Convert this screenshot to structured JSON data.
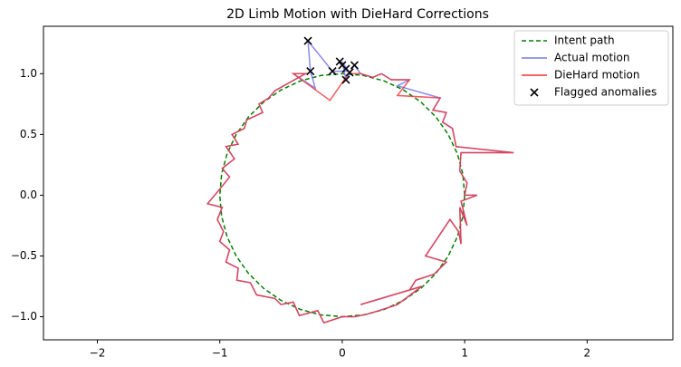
{
  "chart_data": {
    "type": "line",
    "title": "2D Limb Motion with DieHard Corrections",
    "xlim": [
      -2.44,
      2.7
    ],
    "ylim": [
      -1.19,
      1.39
    ],
    "xticks": [
      {
        "value": -2,
        "label": "−2"
      },
      {
        "value": -1,
        "label": "−1"
      },
      0,
      1,
      2
    ],
    "yticks": [
      {
        "value": -1,
        "label": "−1.0"
      },
      {
        "value": -0.5,
        "label": "−0.5"
      },
      {
        "value": 0,
        "label": "0.0"
      },
      {
        "value": 0.5,
        "label": "0.5"
      },
      {
        "value": 1,
        "label": "1.0"
      }
    ],
    "grid": false,
    "legend": "upper right",
    "series": [
      {
        "name": "Intent path",
        "color": "#008000",
        "style": "dashed",
        "x": [
          1,
          0.985,
          0.94,
          0.866,
          0.766,
          0.643,
          0.5,
          0.342,
          0.174,
          0,
          -0.174,
          -0.342,
          -0.5,
          -0.643,
          -0.766,
          -0.866,
          -0.94,
          -0.985,
          -1,
          -0.985,
          -0.94,
          -0.866,
          -0.766,
          -0.643,
          -0.5,
          -0.342,
          -0.174,
          0,
          0.174,
          0.342,
          0.5,
          0.643,
          0.766,
          0.866,
          0.94,
          0.985,
          1
        ],
        "y": [
          0,
          0.174,
          0.342,
          0.5,
          0.643,
          0.766,
          0.866,
          0.94,
          0.985,
          1,
          0.985,
          0.94,
          0.866,
          0.766,
          0.643,
          0.5,
          0.342,
          0.174,
          0,
          -0.174,
          -0.342,
          -0.5,
          -0.643,
          -0.766,
          -0.866,
          -0.94,
          -0.985,
          -1,
          -0.985,
          -0.94,
          -0.866,
          -0.766,
          -0.643,
          -0.5,
          -0.342,
          -0.174,
          0
        ]
      },
      {
        "name": "Actual motion",
        "color": "#7777ee",
        "style": "solid",
        "x": [
          1.0,
          1.02,
          0.96,
          0.97,
          1.4,
          0.93,
          0.92,
          0.9,
          0.82,
          0.85,
          0.74,
          0.8,
          0.45,
          0.55,
          0.4,
          0.32,
          0.25,
          0.15,
          0.1,
          0.03,
          0.0,
          0.05,
          -0.08,
          -0.28,
          -0.26,
          -0.22,
          -0.4,
          -0.3,
          -0.55,
          -0.6,
          -0.68,
          -0.65,
          -0.78,
          -0.8,
          -0.9,
          -0.85,
          -0.95,
          -0.88,
          -0.98,
          -0.92,
          -1.0,
          -1.1,
          -0.98,
          -1.02,
          -0.97,
          -1.0,
          -0.92,
          -0.95,
          -0.85,
          -0.86,
          -0.75,
          -0.7,
          -0.55,
          -0.5,
          -0.4,
          -0.35,
          -0.2,
          -0.15,
          0.0,
          0.1,
          0.2,
          0.3,
          0.45,
          0.65,
          0.15,
          0.55,
          0.6,
          0.75,
          0.85,
          0.68,
          0.88,
          0.95,
          0.97,
          0.96,
          1.02,
          0.97,
          1.1,
          1.0
        ],
        "y": [
          0.0,
          0.1,
          0.2,
          0.35,
          0.35,
          0.4,
          0.45,
          0.55,
          0.6,
          0.68,
          0.7,
          0.8,
          0.9,
          0.95,
          0.95,
          1.0,
          0.97,
          1.0,
          1.07,
          0.95,
          1.1,
          1.02,
          1.02,
          1.27,
          1.02,
          0.88,
          1.0,
          1.0,
          0.86,
          0.8,
          0.75,
          0.68,
          0.62,
          0.55,
          0.5,
          0.42,
          0.4,
          0.3,
          0.22,
          0.15,
          0.05,
          -0.07,
          -0.1,
          -0.2,
          -0.3,
          -0.38,
          -0.45,
          -0.55,
          -0.6,
          -0.7,
          -0.72,
          -0.82,
          -0.85,
          -0.9,
          -0.88,
          -0.99,
          -0.95,
          -1.05,
          -1.0,
          -1.0,
          -0.98,
          -0.95,
          -0.9,
          -0.75,
          -0.9,
          -0.78,
          -0.7,
          -0.65,
          -0.55,
          -0.5,
          -0.2,
          -0.3,
          -0.4,
          -0.1,
          -0.25,
          -0.05,
          0.0,
          0.0
        ]
      },
      {
        "name": "DieHard motion",
        "color": "#ee3333",
        "style": "solid",
        "x": [
          1.0,
          1.02,
          0.96,
          0.97,
          1.4,
          0.93,
          0.92,
          0.9,
          0.82,
          0.85,
          0.74,
          0.8,
          0.45,
          0.55,
          0.4,
          0.32,
          0.25,
          0.15,
          0.05,
          -0.1,
          -0.4,
          -0.3,
          -0.55,
          -0.6,
          -0.68,
          -0.65,
          -0.78,
          -0.8,
          -0.9,
          -0.85,
          -0.95,
          -0.88,
          -0.98,
          -0.92,
          -1.0,
          -1.1,
          -0.98,
          -1.02,
          -0.97,
          -1.0,
          -0.92,
          -0.95,
          -0.85,
          -0.86,
          -0.75,
          -0.7,
          -0.55,
          -0.5,
          -0.4,
          -0.35,
          -0.2,
          -0.15,
          0.0,
          0.1,
          0.2,
          0.3,
          0.45,
          0.65,
          0.15,
          0.55,
          0.6,
          0.75,
          0.85,
          0.68,
          0.88,
          0.95,
          0.97,
          0.96,
          1.02,
          0.97,
          1.1,
          1.0
        ],
        "y": [
          0.0,
          0.1,
          0.2,
          0.35,
          0.35,
          0.4,
          0.45,
          0.55,
          0.6,
          0.68,
          0.7,
          0.8,
          0.82,
          0.95,
          0.95,
          1.0,
          0.97,
          1.0,
          1.0,
          0.78,
          1.0,
          1.0,
          0.86,
          0.8,
          0.75,
          0.68,
          0.62,
          0.55,
          0.5,
          0.42,
          0.4,
          0.3,
          0.22,
          0.15,
          0.05,
          -0.07,
          -0.1,
          -0.2,
          -0.3,
          -0.38,
          -0.45,
          -0.55,
          -0.6,
          -0.7,
          -0.72,
          -0.82,
          -0.85,
          -0.9,
          -0.88,
          -0.99,
          -0.95,
          -1.05,
          -1.0,
          -1.0,
          -0.98,
          -0.95,
          -0.9,
          -0.75,
          -0.9,
          -0.78,
          -0.7,
          -0.65,
          -0.55,
          -0.5,
          -0.2,
          -0.3,
          -0.4,
          -0.1,
          -0.25,
          -0.05,
          0.0,
          0.0
        ]
      },
      {
        "name": "Flagged anomalies",
        "color": "#000000",
        "style": "marker",
        "x": [
          -0.28,
          -0.26,
          -0.08,
          -0.02,
          0.0,
          0.03,
          0.1,
          0.03,
          0.06
        ],
        "y": [
          1.27,
          1.02,
          1.02,
          1.1,
          1.07,
          1.04,
          1.07,
          0.95,
          1.01
        ]
      }
    ]
  }
}
